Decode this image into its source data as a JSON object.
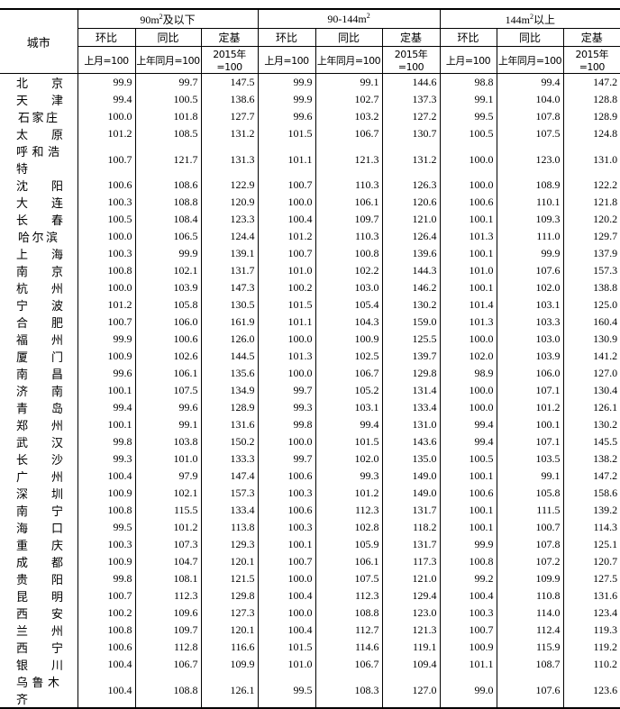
{
  "header": {
    "city": "城市",
    "groups": [
      {
        "label": "90m",
        "sup": "2",
        "suffix": "及以下"
      },
      {
        "label": "90-144m",
        "sup": "2",
        "suffix": ""
      },
      {
        "label": "144m",
        "sup": "2",
        "suffix": "以上"
      }
    ],
    "metrics": [
      "环比",
      "同比",
      "定基"
    ],
    "bases": [
      "上月=100",
      "上年同月=100",
      "2015年=100"
    ]
  },
  "rows": [
    [
      "北京",
      99.9,
      99.7,
      147.5,
      99.9,
      99.1,
      144.6,
      98.8,
      99.4,
      147.2
    ],
    [
      "天津",
      99.4,
      100.5,
      138.6,
      99.9,
      102.7,
      137.3,
      99.1,
      104.0,
      128.8
    ],
    [
      "石家庄",
      100.0,
      101.8,
      127.7,
      99.6,
      103.2,
      127.2,
      99.5,
      107.8,
      128.9
    ],
    [
      "太原",
      101.2,
      108.5,
      131.2,
      101.5,
      106.7,
      130.7,
      100.5,
      107.5,
      124.8
    ],
    [
      "呼和浩特",
      100.7,
      121.7,
      131.3,
      101.1,
      121.3,
      131.2,
      100.0,
      123.0,
      131.0
    ],
    [
      "沈阳",
      100.6,
      108.6,
      122.9,
      100.7,
      110.3,
      126.3,
      100.0,
      108.9,
      122.2
    ],
    [
      "大连",
      100.3,
      108.8,
      120.9,
      100.0,
      106.1,
      120.6,
      100.6,
      110.1,
      121.8
    ],
    [
      "长春",
      100.5,
      108.4,
      123.3,
      100.4,
      109.7,
      121.0,
      100.1,
      109.3,
      120.2
    ],
    [
      "哈尔滨",
      100.0,
      106.5,
      124.4,
      101.2,
      110.3,
      126.4,
      101.3,
      111.0,
      129.7
    ],
    [
      "上海",
      100.3,
      99.9,
      139.1,
      100.7,
      100.8,
      139.6,
      100.1,
      99.9,
      137.9
    ],
    [
      "南京",
      100.8,
      102.1,
      131.7,
      101.0,
      102.2,
      144.3,
      101.0,
      107.6,
      157.3
    ],
    [
      "杭州",
      100.0,
      103.9,
      147.3,
      100.2,
      103.0,
      146.2,
      100.1,
      102.0,
      138.8
    ],
    [
      "宁波",
      101.2,
      105.8,
      130.5,
      101.5,
      105.4,
      130.2,
      101.4,
      103.1,
      125.0
    ],
    [
      "合肥",
      100.7,
      106.0,
      161.9,
      101.1,
      104.3,
      159.0,
      101.3,
      103.3,
      160.4
    ],
    [
      "福州",
      99.9,
      100.6,
      126.0,
      100.0,
      100.9,
      125.5,
      100.0,
      103.0,
      130.9
    ],
    [
      "厦门",
      100.9,
      102.6,
      144.5,
      101.3,
      102.5,
      139.7,
      102.0,
      103.9,
      141.2
    ],
    [
      "南昌",
      99.6,
      106.1,
      135.6,
      100.0,
      106.7,
      129.8,
      98.9,
      106.0,
      127.0
    ],
    [
      "济南",
      100.1,
      107.5,
      134.9,
      99.7,
      105.2,
      131.4,
      100.0,
      107.1,
      130.4
    ],
    [
      "青岛",
      99.4,
      99.6,
      128.9,
      99.3,
      103.1,
      133.4,
      100.0,
      101.2,
      126.1
    ],
    [
      "郑州",
      100.1,
      99.1,
      131.6,
      99.8,
      99.4,
      131.0,
      99.4,
      100.1,
      130.2
    ],
    [
      "武汉",
      99.8,
      103.8,
      150.2,
      100.0,
      101.5,
      143.6,
      99.4,
      107.1,
      145.5
    ],
    [
      "长沙",
      99.3,
      101.0,
      133.3,
      99.7,
      102.0,
      135.0,
      100.5,
      103.5,
      138.2
    ],
    [
      "广州",
      100.4,
      97.9,
      147.4,
      100.6,
      99.3,
      149.0,
      100.1,
      99.1,
      147.2
    ],
    [
      "深圳",
      100.9,
      102.1,
      157.3,
      100.3,
      101.2,
      149.0,
      100.6,
      105.8,
      158.6
    ],
    [
      "南宁",
      100.8,
      115.5,
      133.4,
      100.6,
      112.3,
      131.7,
      100.1,
      111.5,
      139.2
    ],
    [
      "海口",
      99.5,
      101.2,
      113.8,
      100.3,
      102.8,
      118.2,
      100.1,
      100.7,
      114.3
    ],
    [
      "重庆",
      100.3,
      107.3,
      129.3,
      100.1,
      105.9,
      131.7,
      99.9,
      107.8,
      125.1
    ],
    [
      "成都",
      100.9,
      104.7,
      120.1,
      100.7,
      106.1,
      117.3,
      100.8,
      107.2,
      120.7
    ],
    [
      "贵阳",
      99.8,
      108.1,
      121.5,
      100.0,
      107.5,
      121.0,
      99.2,
      109.9,
      127.5
    ],
    [
      "昆明",
      100.7,
      112.3,
      129.8,
      100.4,
      112.3,
      129.4,
      100.4,
      110.8,
      131.6
    ],
    [
      "西安",
      100.2,
      109.6,
      127.3,
      100.0,
      108.8,
      123.0,
      100.3,
      114.0,
      123.4
    ],
    [
      "兰州",
      100.8,
      109.7,
      120.1,
      100.4,
      112.7,
      121.3,
      100.7,
      112.4,
      119.3
    ],
    [
      "西宁",
      100.6,
      112.8,
      116.6,
      101.5,
      114.6,
      119.1,
      100.9,
      115.9,
      119.2
    ],
    [
      "银川",
      100.4,
      106.7,
      109.9,
      101.0,
      106.7,
      109.4,
      101.1,
      108.7,
      110.2
    ],
    [
      "乌鲁木齐",
      100.4,
      108.8,
      126.1,
      99.5,
      108.3,
      127.0,
      99.0,
      107.6,
      123.6
    ]
  ]
}
